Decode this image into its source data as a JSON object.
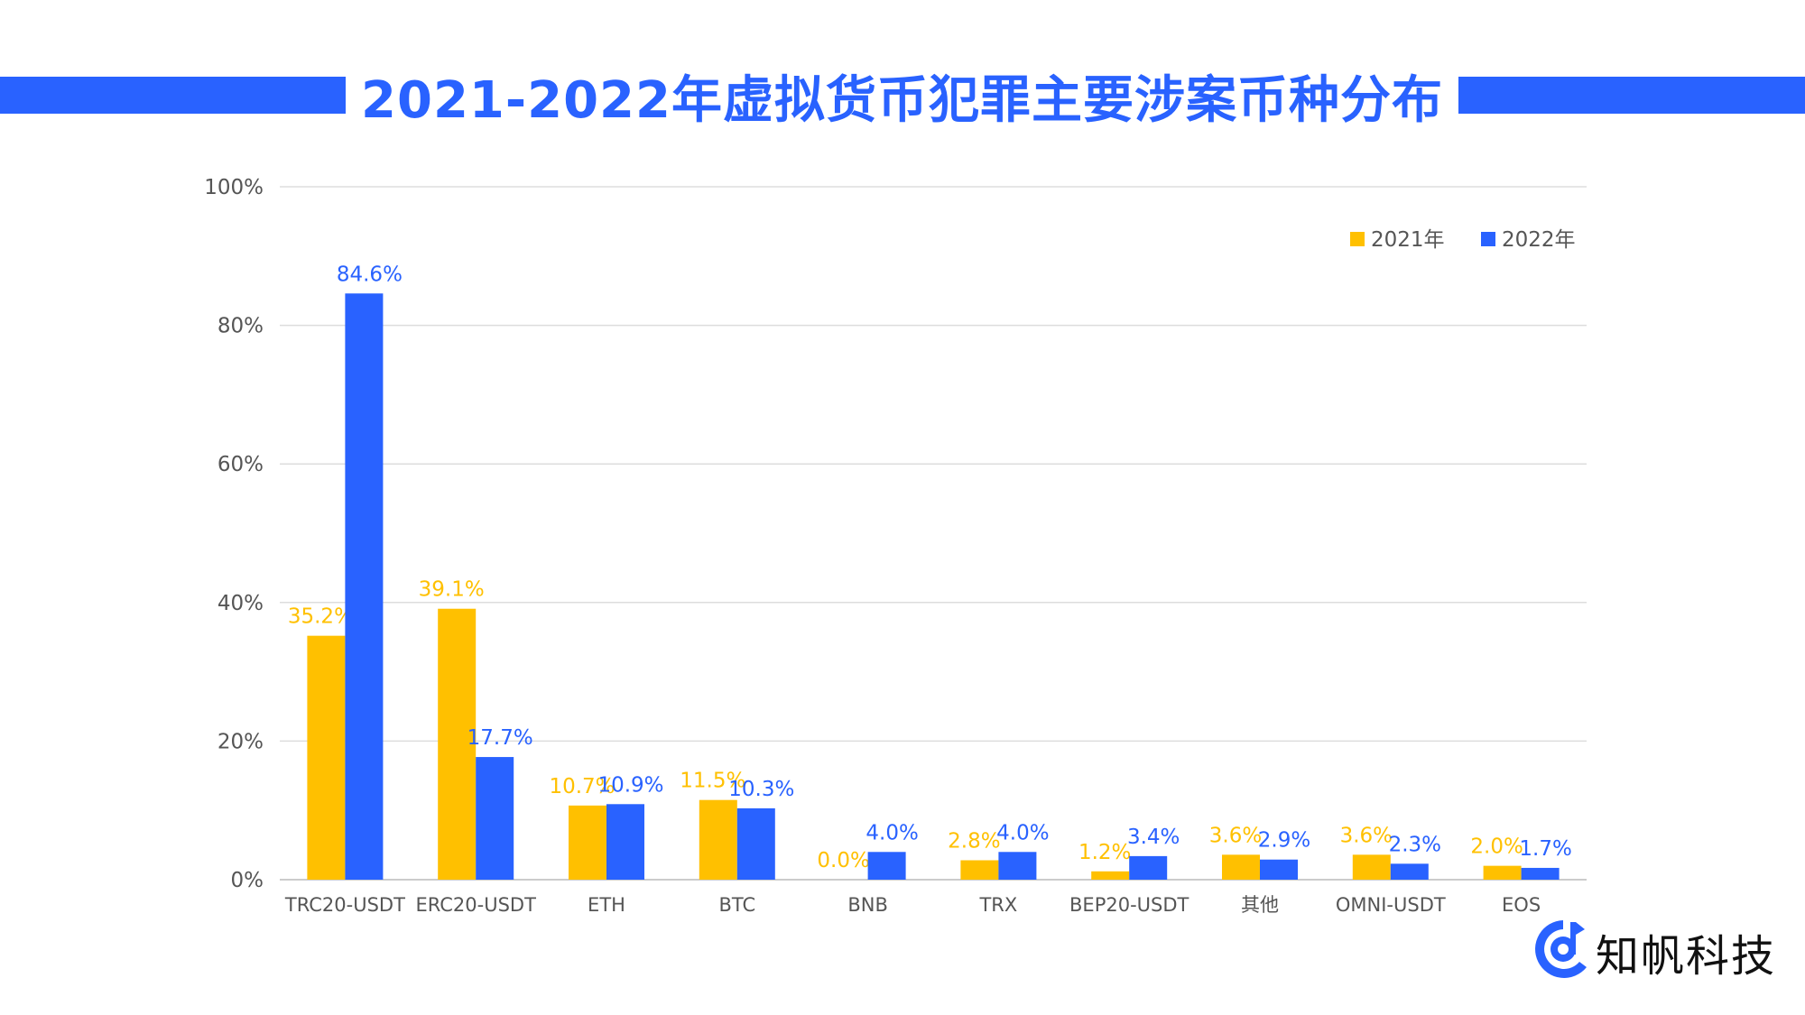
{
  "title": "2021-2022年虚拟货币犯罪主要涉案币种分布",
  "logo": {
    "text": "知帆科技",
    "color": "#2962FF"
  },
  "chart_data": {
    "type": "bar",
    "title": "2021-2022年虚拟货币犯罪主要涉案币种分布",
    "categories": [
      "TRC20-USDT",
      "ERC20-USDT",
      "ETH",
      "BTC",
      "BNB",
      "TRX",
      "BEP20-USDT",
      "其他",
      "OMNI-USDT",
      "EOS"
    ],
    "series": [
      {
        "name": "2021年",
        "color": "#FFC000",
        "values": [
          35.2,
          39.1,
          10.7,
          11.5,
          0.0,
          2.8,
          1.2,
          3.6,
          3.6,
          2.0
        ],
        "labels": [
          "35.2%",
          "39.1%",
          "10.7%",
          "11.5%",
          "0.0%",
          "2.8%",
          "1.2%",
          "3.6%",
          "3.6%",
          "2.0%"
        ]
      },
      {
        "name": "2022年",
        "color": "#2962FF",
        "values": [
          84.6,
          17.7,
          10.9,
          10.3,
          4.0,
          4.0,
          3.4,
          2.9,
          2.3,
          1.7
        ],
        "labels": [
          "84.6%",
          "17.7%",
          "10.9%",
          "10.3%",
          "4.0%",
          "4.0%",
          "3.4%",
          "2.9%",
          "2.3%",
          "1.7%"
        ]
      }
    ],
    "ylim": [
      0,
      100
    ],
    "yticks": [
      "0%",
      "20%",
      "40%",
      "60%",
      "80%",
      "100%"
    ],
    "grid": true,
    "legend": "top-right",
    "xlabel": "",
    "ylabel": ""
  }
}
